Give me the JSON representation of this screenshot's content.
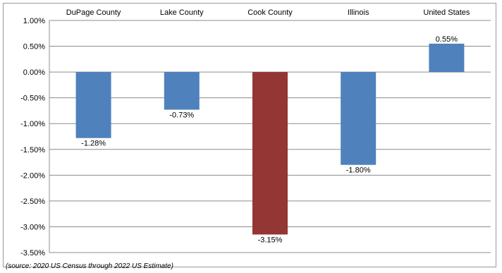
{
  "chart_data": {
    "type": "bar",
    "categories": [
      "DuPage County",
      "Lake County",
      "Cook County",
      "Illinois",
      "United States"
    ],
    "values": [
      -1.28,
      -0.73,
      -3.15,
      -1.8,
      0.55
    ],
    "value_labels": [
      "-1.28%",
      "-0.73%",
      "-3.15%",
      "-1.80%",
      "0.55%"
    ],
    "bar_colors": [
      "#4f81bd",
      "#4f81bd",
      "#943634",
      "#4f81bd",
      "#4f81bd"
    ],
    "ylim": [
      -3.5,
      1.0
    ],
    "y_ticks": [
      1.0,
      0.5,
      0.0,
      -0.5,
      -1.0,
      -1.5,
      -2.0,
      -2.5,
      -3.0,
      -3.5
    ],
    "y_tick_labels": [
      "1.00%",
      "0.50%",
      "0.00%",
      "-0.50%",
      "-1.00%",
      "-1.50%",
      "-2.00%",
      "-2.50%",
      "-3.00%",
      "-3.50%"
    ],
    "category_axis_position": "top",
    "grid": true,
    "legend": false,
    "xlabel": "",
    "ylabel": ""
  },
  "source_note": "(source: 2020 US Census through 2022 US Estimate)"
}
